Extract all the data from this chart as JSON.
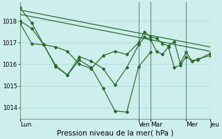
{
  "xlabel": "Pression niveau de la mer( hPa )",
  "bg_color": "#cdeeed",
  "grid_color": "#b0dcdc",
  "line_color": "#2d6a2d",
  "vline_color": "#4a7a5a",
  "ylim": [
    1013.5,
    1018.85
  ],
  "xlim": [
    0,
    192
  ],
  "yticks": [
    1014,
    1015,
    1016,
    1017,
    1018
  ],
  "day_ticks_x": [
    0,
    120,
    132,
    168,
    192
  ],
  "day_labels": [
    "Lun",
    "Ven",
    "Mar",
    "Mer",
    "Jeu"
  ],
  "series_trend1": {
    "x": [
      0,
      192
    ],
    "y": [
      1018.5,
      1016.8
    ]
  },
  "series_trend2": {
    "x": [
      0,
      192
    ],
    "y": [
      1018.3,
      1016.6
    ]
  },
  "series_main1": {
    "x": [
      0,
      12,
      24,
      36,
      48,
      60,
      72,
      84,
      96,
      108,
      120,
      126,
      132,
      138,
      144,
      150,
      156,
      162,
      168,
      174,
      180,
      192
    ],
    "y": [
      1018.6,
      1017.9,
      1016.9,
      1016.8,
      1016.6,
      1016.0,
      1015.8,
      1016.4,
      1016.6,
      1016.45,
      1017.0,
      1017.5,
      1017.25,
      1017.2,
      1016.95,
      1016.85,
      1017.05,
      1016.05,
      1016.55,
      1016.15,
      1016.2,
      1016.5
    ]
  },
  "series_main2": {
    "x": [
      0,
      12,
      24,
      36,
      48,
      60,
      72,
      84,
      96,
      108,
      120,
      126,
      132,
      138,
      144,
      150,
      156,
      162,
      168,
      174,
      180,
      192
    ],
    "y": [
      1017.9,
      1016.95,
      1016.9,
      1015.9,
      1015.5,
      1016.35,
      1016.15,
      1015.8,
      1015.05,
      1015.85,
      1016.9,
      1017.25,
      1017.15,
      1016.6,
      1016.45,
      1016.8,
      1015.85,
      1015.95,
      1016.35,
      1016.15,
      1016.25,
      1016.4
    ]
  },
  "series_drop": {
    "x": [
      0,
      12,
      24,
      36,
      48,
      60,
      72,
      84,
      96,
      108,
      120,
      132
    ],
    "y": [
      1018.0,
      1017.65,
      1016.9,
      1015.95,
      1015.5,
      1016.2,
      1015.85,
      1014.9,
      1013.85,
      1013.8,
      1015.9,
      1016.55
    ]
  }
}
